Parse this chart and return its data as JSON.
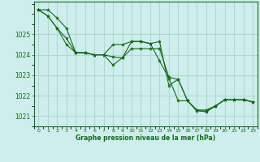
{
  "title": "Graphe pression niveau de la mer (hPa)",
  "background_color": "#cdeeed",
  "grid_color": "#b0d8cc",
  "line_color": "#1a6620",
  "marker_color": "#1a6620",
  "xlim": [
    -0.5,
    23.5
  ],
  "ylim": [
    1020.5,
    1026.6
  ],
  "yticks": [
    1021,
    1022,
    1023,
    1024,
    1025
  ],
  "xticks": [
    0,
    1,
    2,
    3,
    4,
    5,
    6,
    7,
    8,
    9,
    10,
    11,
    12,
    13,
    14,
    15,
    16,
    17,
    18,
    19,
    20,
    21,
    22,
    23
  ],
  "series": [
    [
      1026.2,
      1026.2,
      1025.8,
      1025.3,
      1024.1,
      1024.1,
      1024.0,
      1024.0,
      1023.9,
      1023.85,
      1024.3,
      1024.3,
      1024.3,
      1024.3,
      1022.9,
      1022.8,
      1021.75,
      1021.3,
      1021.3,
      1021.5,
      1021.8,
      1021.8,
      1021.8,
      1021.7
    ],
    [
      1026.2,
      1025.9,
      1025.3,
      1024.5,
      1024.1,
      1024.1,
      1024.0,
      1024.0,
      1023.5,
      1023.85,
      1024.65,
      1024.65,
      1024.55,
      1023.7,
      1022.85,
      1021.75,
      1021.75,
      1021.3,
      1021.2,
      1021.5,
      1021.8,
      1021.8,
      1021.8,
      1021.7
    ],
    [
      1026.2,
      1025.9,
      1025.3,
      1024.8,
      1024.1,
      1024.1,
      1024.0,
      1024.0,
      1024.5,
      1024.5,
      1024.65,
      1024.65,
      1024.55,
      1024.65,
      1022.5,
      1022.8,
      1021.75,
      1021.25,
      1021.25,
      1021.5,
      1021.8,
      1021.8,
      1021.8,
      1021.7
    ]
  ]
}
